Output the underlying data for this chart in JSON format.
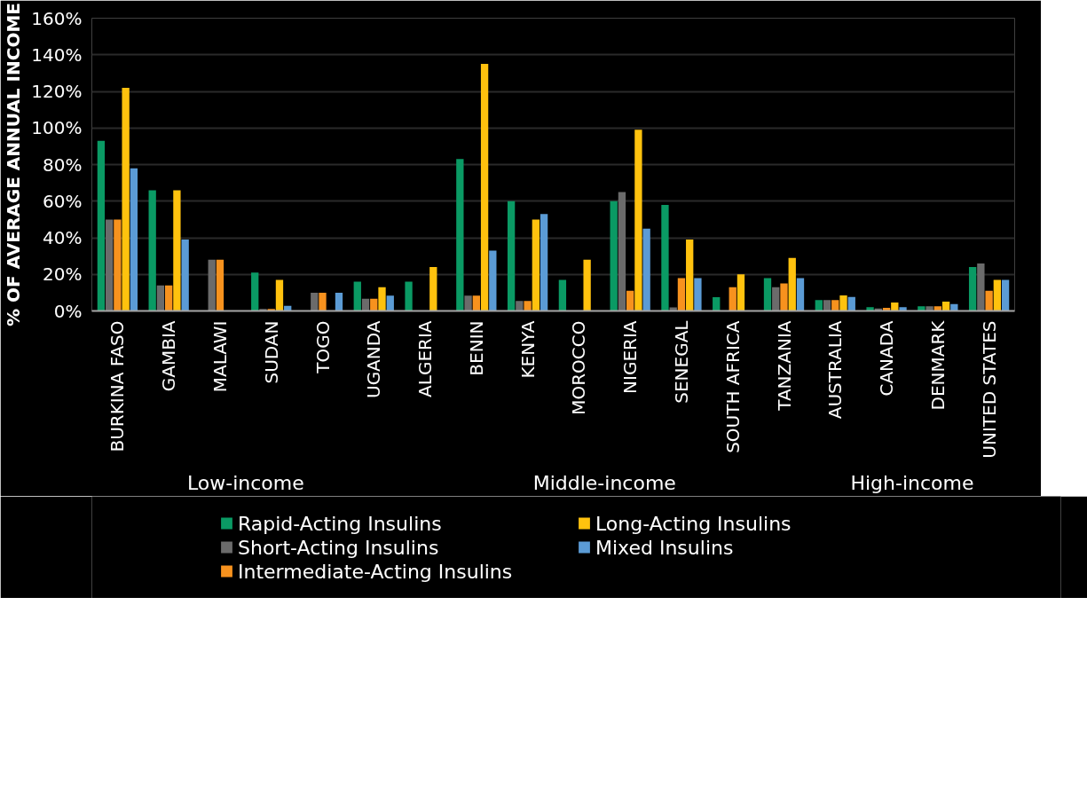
{
  "chart_data": {
    "type": "bar",
    "ylabel": "% OF AVERAGE ANNUAL INCOME",
    "categories": [
      "BURKINA FASO",
      "GAMBIA",
      "MALAWI",
      "SUDAN",
      "TOGO",
      "UGANDA",
      "ALGERIA",
      "BENIN",
      "KENYA",
      "MOROCCO",
      "NIGERIA",
      "SENEGAL",
      "SOUTH AFRICA",
      "TANZANIA",
      "AUSTRALIA",
      "CANADA",
      "DENMARK",
      "UNITED STATES"
    ],
    "series": [
      {
        "name": "Rapid-Acting Insulins",
        "color": "#0a9a64",
        "values": [
          93,
          66,
          null,
          21,
          null,
          16,
          16,
          83,
          60,
          17,
          60,
          58,
          7.5,
          18,
          6,
          2.1,
          2.5,
          24
        ]
      },
      {
        "name": "Short-Acting Insulins",
        "color": "#6b6b6b",
        "values": [
          50,
          14,
          28,
          1.1,
          10,
          6.7,
          null,
          8.4,
          5.4,
          null,
          65,
          2,
          null,
          13,
          6,
          1.3,
          2.5,
          26
        ]
      },
      {
        "name": "Intermediate-Acting Insulins",
        "color": "#f7921e",
        "values": [
          50,
          14,
          28,
          1.1,
          10,
          6.7,
          null,
          8.4,
          5.4,
          null,
          11,
          18,
          13,
          15,
          6,
          1.7,
          2.5,
          11
        ]
      },
      {
        "name": "Long-Acting Insulins",
        "color": "#ffc20e",
        "values": [
          122,
          66,
          null,
          17,
          null,
          13,
          24,
          135,
          50,
          28,
          99,
          39,
          20,
          29,
          8.5,
          4.6,
          5.1,
          17
        ]
      },
      {
        "name": "Mixed Insulins",
        "color": "#5b9bd5",
        "values": [
          78,
          39,
          null,
          2.8,
          10,
          8.4,
          null,
          33,
          53,
          null,
          45,
          18,
          null,
          18,
          7.6,
          2.1,
          3.8,
          17
        ]
      }
    ],
    "annotations": [
      "Low-income",
      "Middle-income",
      "High-income"
    ],
    "ylim": [
      0,
      160
    ],
    "yticks": [
      {
        "value": 0,
        "label": "0%"
      },
      {
        "value": 20,
        "label": "20%"
      },
      {
        "value": 40,
        "label": "40%"
      },
      {
        "value": 60,
        "label": "60%"
      },
      {
        "value": 80,
        "label": "80%"
      },
      {
        "value": 100,
        "label": "100%"
      },
      {
        "value": 120,
        "label": "120%"
      },
      {
        "value": 140,
        "label": "140%"
      },
      {
        "value": 160,
        "label": "160%"
      }
    ],
    "grid": "y",
    "legend": "bottom"
  }
}
